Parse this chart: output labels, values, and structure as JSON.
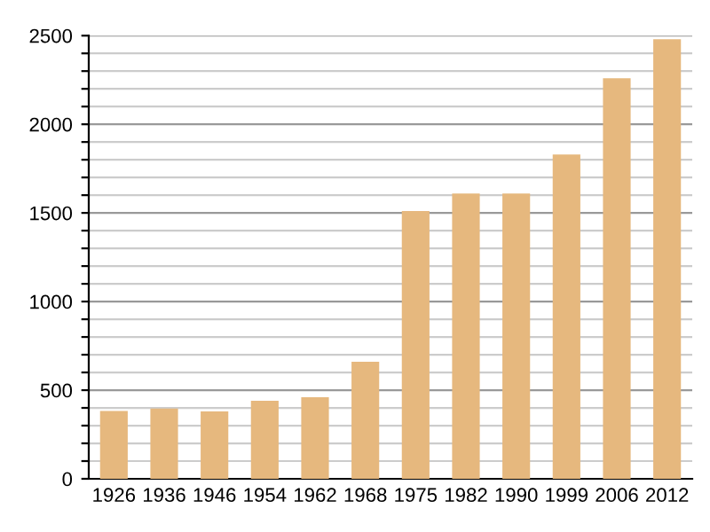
{
  "chart_data": {
    "type": "bar",
    "categories": [
      "1926",
      "1936",
      "1946",
      "1954",
      "1962",
      "1968",
      "1975",
      "1982",
      "1990",
      "1999",
      "2006",
      "2012"
    ],
    "values": [
      383,
      397,
      380,
      440,
      460,
      660,
      1510,
      1610,
      1610,
      1830,
      2260,
      2480
    ],
    "color": "#e6b87e",
    "ylim": [
      0,
      2500
    ],
    "yticks": [
      0,
      {
        "value": 100,
        "label": null
      },
      {
        "value": 200,
        "label": null
      },
      {
        "value": 300,
        "label": null
      },
      {
        "value": 400,
        "label": null
      },
      500,
      {
        "value": 600,
        "label": null
      },
      {
        "value": 700,
        "label": null
      },
      {
        "value": 800,
        "label": null
      },
      {
        "value": 900,
        "label": null
      },
      1000,
      {
        "value": 1100,
        "label": null
      },
      {
        "value": 1200,
        "label": null
      },
      {
        "value": 1300,
        "label": null
      },
      {
        "value": 1400,
        "label": null
      },
      1500,
      {
        "value": 1600,
        "label": null
      },
      {
        "value": 1700,
        "label": null
      },
      {
        "value": 1800,
        "label": null
      },
      {
        "value": 1900,
        "label": null
      },
      2000,
      {
        "value": 2100,
        "label": null
      },
      {
        "value": 2200,
        "label": null
      },
      {
        "value": 2300,
        "label": null
      },
      {
        "value": 2400,
        "label": null
      },
      2500
    ],
    "grid": "y"
  }
}
